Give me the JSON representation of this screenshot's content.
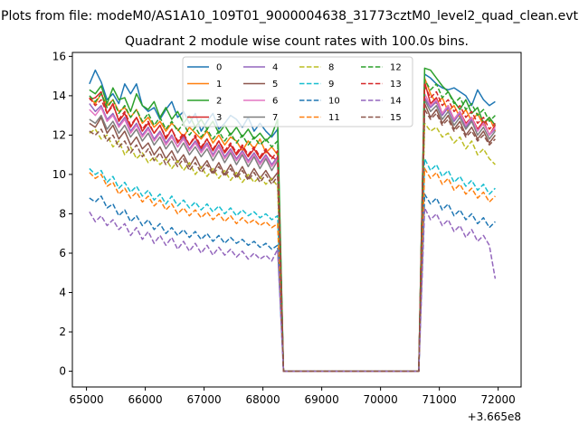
{
  "chart_data": {
    "type": "line",
    "suptitle": "Plots from file: modeM0/AS1A10_109T01_9000004638_31773cztM0_level2_quad_clean.evt",
    "title": "Quadrant 2 module wise count rates with 100.0s bins.",
    "xlabel": "",
    "ylabel": "",
    "x_offset_label": "+3.665e8",
    "xlim": [
      64760,
      72390
    ],
    "ylim": [
      -0.8,
      16.2
    ],
    "xticks": [
      65000,
      66000,
      67000,
      68000,
      69000,
      70000,
      71000,
      72000
    ],
    "xtick_labels": [
      "65000",
      "66000",
      "67000",
      "68000",
      "69000",
      "70000",
      "71000",
      "72000"
    ],
    "yticks": [
      0,
      2,
      4,
      6,
      8,
      10,
      12,
      14,
      16
    ],
    "ytick_labels": [
      "0",
      "2",
      "4",
      "6",
      "8",
      "10",
      "12",
      "14",
      "16"
    ],
    "legend_position": "top-center",
    "x_segments": {
      "seg1": {
        "start": 65050,
        "step": 100,
        "count": 33
      },
      "gap": {
        "start": 68350,
        "end": 70650,
        "value": 0
      },
      "seg2": {
        "start": 70750,
        "step": 100,
        "count": 13
      }
    },
    "series": [
      {
        "name": "0",
        "color": "#1f77b4",
        "dash": "solid",
        "seg1": [
          14.6,
          15.3,
          14.7,
          13.8,
          14.1,
          13.6,
          14.6,
          14.1,
          14.6,
          13.5,
          13.2,
          13.4,
          12.8,
          13.3,
          13.7,
          12.9,
          13.2,
          12.6,
          13.1,
          12.2,
          12.7,
          13.1,
          12.3,
          12.6,
          13.0,
          12.8,
          12.4,
          12.9,
          12.2,
          12.6,
          12.2,
          11.9,
          12.3
        ],
        "seg2": [
          15.1,
          14.9,
          14.6,
          14.4,
          14.3,
          14.4,
          14.2,
          14.0,
          13.5,
          14.3,
          13.8,
          13.5,
          13.7
        ]
      },
      {
        "name": "1",
        "color": "#ff7f0e",
        "dash": "solid",
        "seg1": [
          13.9,
          13.6,
          14.1,
          13.5,
          13.8,
          13.2,
          13.4,
          12.9,
          13.3,
          12.6,
          12.9,
          12.4,
          12.7,
          12.2,
          12.6,
          12.3,
          11.9,
          12.4,
          12.1,
          11.8,
          12.2,
          11.6,
          12.0,
          11.5,
          11.9,
          11.7,
          11.2,
          11.7,
          11.3,
          11.8,
          11.1,
          11.4,
          11.0
        ],
        "seg2": [
          14.9,
          14.1,
          13.6,
          13.9,
          13.2,
          13.5,
          12.9,
          13.3,
          12.7,
          13.1,
          12.5,
          12.9,
          12.2
        ]
      },
      {
        "name": "2",
        "color": "#2ca02c",
        "dash": "solid",
        "seg1": [
          14.3,
          14.1,
          14.5,
          13.6,
          14.4,
          13.8,
          13.9,
          13.2,
          14.1,
          13.5,
          13.3,
          13.7,
          12.9,
          13.4,
          12.8,
          13.2,
          12.6,
          13.0,
          12.4,
          12.8,
          12.3,
          12.7,
          12.1,
          12.5,
          12.0,
          12.4,
          11.9,
          12.3,
          11.8,
          12.1,
          11.7,
          12.0,
          12.8
        ],
        "seg2": [
          15.4,
          15.3,
          14.9,
          14.5,
          14.2,
          13.7,
          13.3,
          13.8,
          13.1,
          13.4,
          12.6,
          12.9,
          12.5
        ]
      },
      {
        "name": "3",
        "color": "#d62728",
        "dash": "solid",
        "seg1": [
          13.8,
          13.9,
          14.2,
          13.1,
          13.6,
          12.7,
          13.1,
          12.4,
          12.9,
          12.2,
          12.6,
          12.1,
          12.5,
          11.8,
          12.3,
          11.6,
          12.0,
          11.5,
          11.9,
          11.3,
          11.8,
          11.2,
          11.7,
          11.1,
          11.5,
          11.0,
          11.4,
          10.9,
          11.3,
          10.8,
          11.2,
          10.9,
          10.7
        ],
        "seg2": [
          14.7,
          13.6,
          13.9,
          13.1,
          13.5,
          12.8,
          13.2,
          12.6,
          12.9,
          12.3,
          12.7,
          12.0,
          12.5
        ]
      },
      {
        "name": "4",
        "color": "#9467bd",
        "dash": "solid",
        "seg1": [
          13.6,
          13.2,
          13.5,
          12.8,
          13.1,
          12.5,
          12.9,
          12.2,
          12.6,
          12.0,
          12.4,
          11.8,
          12.2,
          11.6,
          12.0,
          11.4,
          11.9,
          11.3,
          11.7,
          11.2,
          11.6,
          11.0,
          11.5,
          10.9,
          11.3,
          10.8,
          11.2,
          10.7,
          11.1,
          10.6,
          11.0,
          10.5,
          10.9
        ],
        "seg2": [
          13.9,
          13.4,
          13.7,
          13.0,
          13.4,
          12.7,
          13.1,
          12.4,
          12.8,
          12.2,
          12.6,
          12.0,
          12.3
        ]
      },
      {
        "name": "5",
        "color": "#8c564b",
        "dash": "solid",
        "seg1": [
          12.6,
          12.4,
          12.9,
          12.1,
          12.5,
          11.8,
          12.2,
          11.5,
          11.9,
          11.3,
          11.6,
          11.0,
          11.4,
          10.8,
          11.2,
          10.6,
          11.0,
          10.4,
          10.9,
          10.3,
          10.7,
          10.1,
          10.6,
          10.0,
          10.5,
          9.9,
          10.4,
          9.8,
          10.3,
          9.8,
          10.2,
          9.7,
          10.1
        ],
        "seg2": [
          13.6,
          12.9,
          13.3,
          12.6,
          13.0,
          12.3,
          12.7,
          12.0,
          12.4,
          11.8,
          12.2,
          11.6,
          12.0
        ]
      },
      {
        "name": "6",
        "color": "#e377c2",
        "dash": "solid",
        "seg1": [
          13.3,
          13.0,
          13.4,
          12.7,
          13.0,
          12.4,
          12.8,
          12.1,
          12.5,
          11.9,
          12.3,
          11.7,
          12.1,
          11.5,
          11.9,
          11.4,
          11.8,
          11.2,
          11.6,
          11.1,
          11.5,
          10.9,
          11.4,
          10.8,
          11.2,
          10.7,
          11.1,
          10.6,
          11.0,
          10.5,
          10.9,
          10.4,
          10.8
        ],
        "seg2": [
          14.1,
          13.5,
          13.8,
          13.1,
          13.5,
          12.8,
          13.2,
          12.5,
          12.9,
          12.2,
          12.6,
          12.0,
          12.4
        ]
      },
      {
        "name": "7",
        "color": "#7f7f7f",
        "dash": "solid",
        "seg1": [
          12.8,
          12.6,
          13.0,
          12.3,
          12.7,
          12.1,
          12.5,
          11.9,
          12.3,
          11.7,
          12.1,
          11.5,
          11.9,
          11.3,
          11.7,
          11.1,
          11.6,
          11.0,
          11.4,
          10.9,
          11.3,
          10.7,
          11.2,
          10.6,
          11.1,
          10.5,
          11.0,
          10.4,
          10.9,
          10.3,
          10.8,
          10.2,
          10.7
        ],
        "seg2": [
          13.8,
          13.2,
          13.5,
          12.8,
          13.2,
          12.5,
          12.9,
          12.3,
          12.7,
          12.0,
          12.4,
          11.8,
          12.2
        ]
      },
      {
        "name": "8",
        "color": "#bcbd22",
        "dash": "dashed",
        "seg1": [
          12.1,
          12.3,
          11.8,
          12.0,
          11.4,
          11.7,
          11.0,
          11.4,
          10.8,
          11.1,
          10.6,
          10.9,
          10.5,
          10.8,
          10.3,
          10.7,
          10.2,
          10.6,
          10.0,
          10.4,
          9.9,
          10.3,
          9.8,
          10.2,
          9.7,
          10.1,
          9.6,
          10.0,
          9.6,
          9.9,
          9.5,
          9.8,
          9.4
        ],
        "seg2": [
          12.6,
          12.2,
          12.4,
          11.9,
          12.1,
          11.6,
          11.9,
          11.3,
          11.7,
          11.0,
          11.3,
          10.8,
          10.5
        ]
      },
      {
        "name": "9",
        "color": "#17becf",
        "dash": "dashed",
        "seg1": [
          10.3,
          10.0,
          10.2,
          9.6,
          9.9,
          9.3,
          9.6,
          9.1,
          9.4,
          8.9,
          9.2,
          8.7,
          9.0,
          8.5,
          8.9,
          8.4,
          8.7,
          8.3,
          8.6,
          8.2,
          8.5,
          8.1,
          8.4,
          8.0,
          8.3,
          7.9,
          8.2,
          7.9,
          8.1,
          7.8,
          8.0,
          7.7,
          7.9
        ],
        "seg2": [
          10.8,
          10.2,
          10.5,
          9.9,
          10.2,
          9.6,
          9.9,
          9.4,
          9.7,
          9.2,
          9.5,
          9.0,
          9.3
        ]
      },
      {
        "name": "10",
        "color": "#1f77b4",
        "dash": "dashed",
        "seg1": [
          8.8,
          8.6,
          8.9,
          8.3,
          8.5,
          7.9,
          8.2,
          7.6,
          7.9,
          7.4,
          7.7,
          7.2,
          7.5,
          7.0,
          7.3,
          6.9,
          7.2,
          6.8,
          7.1,
          6.7,
          7.0,
          6.6,
          6.9,
          6.5,
          6.8,
          6.5,
          6.7,
          6.4,
          6.6,
          6.3,
          6.5,
          6.2,
          6.4
        ],
        "seg2": [
          9.0,
          8.5,
          8.8,
          8.2,
          8.5,
          7.9,
          8.2,
          7.7,
          8.0,
          7.5,
          7.8,
          7.3,
          7.6
        ]
      },
      {
        "name": "11",
        "color": "#ff7f0e",
        "dash": "dashed",
        "seg1": [
          10.1,
          9.8,
          10.0,
          9.4,
          9.6,
          9.0,
          9.3,
          8.8,
          9.1,
          8.6,
          8.9,
          8.4,
          8.7,
          8.2,
          8.5,
          8.0,
          8.3,
          7.9,
          8.2,
          7.8,
          8.1,
          7.7,
          8.0,
          7.6,
          7.9,
          7.5,
          7.8,
          7.5,
          7.7,
          7.4,
          7.6,
          7.3,
          7.5
        ],
        "seg2": [
          10.3,
          9.8,
          10.1,
          9.5,
          9.8,
          9.2,
          9.5,
          9.0,
          9.3,
          8.8,
          9.1,
          8.6,
          8.9
        ]
      },
      {
        "name": "12",
        "color": "#2ca02c",
        "dash": "dashed",
        "seg1": [
          14.0,
          13.7,
          14.1,
          13.4,
          13.8,
          13.1,
          13.5,
          12.9,
          13.3,
          12.7,
          13.1,
          12.5,
          12.9,
          12.3,
          12.7,
          12.2,
          12.6,
          12.0,
          12.4,
          11.9,
          12.3,
          11.8,
          12.2,
          11.7,
          12.1,
          11.6,
          12.0,
          11.5,
          11.9,
          11.5,
          11.8,
          11.4,
          11.7
        ],
        "seg2": [
          14.8,
          14.3,
          14.6,
          13.9,
          14.2,
          13.6,
          13.9,
          13.3,
          13.6,
          13.0,
          13.3,
          12.7,
          13.0
        ]
      },
      {
        "name": "13",
        "color": "#d62728",
        "dash": "dashed",
        "seg1": [
          13.9,
          13.5,
          13.8,
          13.1,
          13.5,
          12.8,
          13.2,
          12.5,
          12.9,
          12.3,
          12.7,
          12.1,
          12.5,
          11.9,
          12.3,
          11.7,
          12.1,
          11.5,
          12.0,
          11.4,
          11.8,
          11.3,
          11.7,
          11.2,
          11.6,
          11.1,
          11.5,
          11.0,
          11.4,
          10.9,
          11.3,
          10.8,
          11.2
        ],
        "seg2": [
          14.5,
          13.9,
          14.2,
          13.5,
          13.8,
          13.2,
          13.5,
          12.9,
          13.2,
          12.6,
          12.9,
          12.3,
          12.6
        ]
      },
      {
        "name": "14",
        "color": "#9467bd",
        "dash": "dashed",
        "seg1": [
          8.1,
          7.6,
          7.9,
          7.4,
          7.7,
          7.2,
          7.5,
          6.9,
          7.3,
          6.7,
          7.1,
          6.5,
          6.9,
          6.4,
          6.8,
          6.2,
          6.6,
          6.1,
          6.5,
          6.0,
          6.4,
          5.9,
          6.3,
          5.9,
          6.2,
          5.8,
          6.1,
          5.7,
          6.0,
          5.7,
          5.9,
          5.6,
          6.2
        ],
        "seg2": [
          8.3,
          7.7,
          8.0,
          7.4,
          7.7,
          7.1,
          7.4,
          6.8,
          7.2,
          6.6,
          6.9,
          6.4,
          4.7
        ]
      },
      {
        "name": "15",
        "color": "#8c564b",
        "dash": "dashed",
        "seg1": [
          12.2,
          12.0,
          12.3,
          11.7,
          12.0,
          11.4,
          11.7,
          11.1,
          11.5,
          10.9,
          11.3,
          10.7,
          11.1,
          10.5,
          10.9,
          10.4,
          10.8,
          10.2,
          10.6,
          10.1,
          10.5,
          10.0,
          10.4,
          9.9,
          10.3,
          9.8,
          10.2,
          9.7,
          10.1,
          9.6,
          10.0,
          9.5,
          9.9
        ],
        "seg2": [
          13.3,
          12.8,
          13.1,
          12.5,
          12.8,
          12.2,
          12.5,
          11.9,
          12.2,
          11.7,
          12.0,
          11.5,
          11.8
        ]
      }
    ]
  }
}
